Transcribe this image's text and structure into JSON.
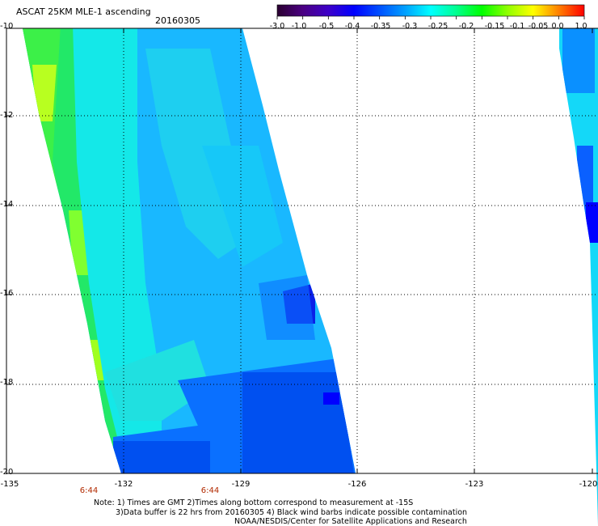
{
  "header": {
    "title": "ASCAT 25KM MLE-1 ascending",
    "date": "20160305"
  },
  "colorbar": {
    "labels": [
      "-3.0",
      "-1.0",
      "-0.5",
      "-0.4",
      "-0.35",
      "-0.3",
      "-0.25",
      "-0.2",
      "-0.15",
      "-0.1",
      "-0.05",
      "0.0",
      "1.0"
    ],
    "colors": [
      "#2a0030",
      "#4b0082",
      "#3d00c8",
      "#0000ff",
      "#0050ff",
      "#00a0ff",
      "#00ffff",
      "#00ff90",
      "#00ff00",
      "#90ff00",
      "#ffff00",
      "#ff8000",
      "#ff0000"
    ]
  },
  "axes": {
    "lon_labels": [
      "-135",
      "-132",
      "-129",
      "-126",
      "-123",
      "-120"
    ],
    "lat_labels": [
      "-10",
      "-12",
      "-14",
      "-16",
      "-18",
      "-20"
    ]
  },
  "times": [
    "6:44",
    "6:44"
  ],
  "notes": {
    "line1": "Note: 1) Times are GMT 2)Times along bottom correspond to measurement at -15S",
    "line2": "3)Data buffer is 22 hrs from 20160305 4) Black wind barbs indicate possible contamination",
    "line3": "NOAA/NESDIS/Center for Satellite Applications and Research"
  }
}
